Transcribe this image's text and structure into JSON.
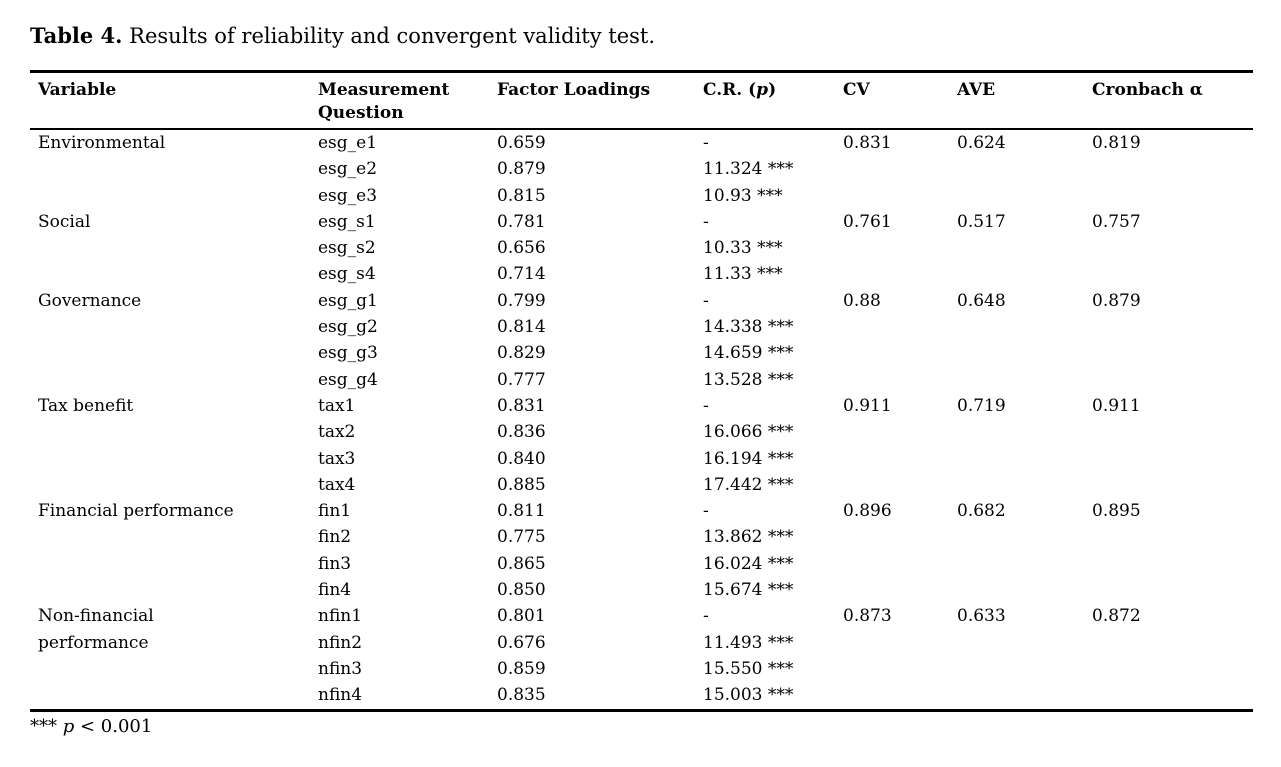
{
  "title": {
    "label": "Table 4.",
    "text": " Results of reliability and convergent validity test."
  },
  "table": {
    "columns": [
      {
        "label": "Variable"
      },
      {
        "line1": "Measurement",
        "line2": "Question"
      },
      {
        "label": "Factor Loadings"
      },
      {
        "label": "C.R. (",
        "italic": "p",
        "suffix": ")"
      },
      {
        "label": "CV"
      },
      {
        "label": "AVE"
      },
      {
        "label": "Cronbach α"
      }
    ],
    "groups": [
      {
        "variable": "Environmental",
        "lines": [
          "Environmental"
        ],
        "cv": "0.831",
        "ave": "0.624",
        "cronbach": "0.819",
        "items": [
          {
            "q": "esg_e1",
            "fl": "0.659",
            "cr": "-"
          },
          {
            "q": "esg_e2",
            "fl": "0.879",
            "cr": "11.324 ***"
          },
          {
            "q": "esg_e3",
            "fl": "0.815",
            "cr": "10.93 ***"
          }
        ]
      },
      {
        "variable": "Social",
        "lines": [
          "Social"
        ],
        "cv": "0.761",
        "ave": "0.517",
        "cronbach": "0.757",
        "items": [
          {
            "q": "esg_s1",
            "fl": "0.781",
            "cr": "-"
          },
          {
            "q": "esg_s2",
            "fl": "0.656",
            "cr": "10.33 ***"
          },
          {
            "q": "esg_s4",
            "fl": "0.714",
            "cr": "11.33 ***"
          }
        ]
      },
      {
        "variable": "Governance",
        "lines": [
          "Governance"
        ],
        "cv": "0.88",
        "ave": "0.648",
        "cronbach": "0.879",
        "items": [
          {
            "q": "esg_g1",
            "fl": "0.799",
            "cr": "-"
          },
          {
            "q": "esg_g2",
            "fl": "0.814",
            "cr": "14.338 ***"
          },
          {
            "q": "esg_g3",
            "fl": "0.829",
            "cr": "14.659 ***"
          },
          {
            "q": "esg_g4",
            "fl": "0.777",
            "cr": "13.528 ***"
          }
        ]
      },
      {
        "variable": "Tax benefit",
        "lines": [
          "Tax benefit"
        ],
        "cv": "0.911",
        "ave": "0.719",
        "cronbach": "0.911",
        "items": [
          {
            "q": "tax1",
            "fl": "0.831",
            "cr": "-"
          },
          {
            "q": "tax2",
            "fl": "0.836",
            "cr": "16.066 ***"
          },
          {
            "q": "tax3",
            "fl": "0.840",
            "cr": "16.194 ***"
          },
          {
            "q": "tax4",
            "fl": "0.885",
            "cr": "17.442 ***"
          }
        ]
      },
      {
        "variable": "Financial performance",
        "lines": [
          "Financial performance"
        ],
        "cv": "0.896",
        "ave": "0.682",
        "cronbach": "0.895",
        "items": [
          {
            "q": "fin1",
            "fl": "0.811",
            "cr": "-"
          },
          {
            "q": "fin2",
            "fl": "0.775",
            "cr": "13.862 ***"
          },
          {
            "q": "fin3",
            "fl": "0.865",
            "cr": "16.024 ***"
          },
          {
            "q": "fin4",
            "fl": "0.850",
            "cr": "15.674 ***"
          }
        ]
      },
      {
        "variable": "Non-financial performance",
        "lines": [
          "Non-financial",
          "performance"
        ],
        "cv": "0.873",
        "ave": "0.633",
        "cronbach": "0.872",
        "items": [
          {
            "q": "nfin1",
            "fl": "0.801",
            "cr": "-"
          },
          {
            "q": "nfin2",
            "fl": "0.676",
            "cr": "11.493 ***"
          },
          {
            "q": "nfin3",
            "fl": "0.859",
            "cr": "15.550 ***"
          },
          {
            "q": "nfin4",
            "fl": "0.835",
            "cr": "15.003 ***"
          }
        ]
      }
    ]
  },
  "footnote": {
    "stars": "*** ",
    "symbol": "p",
    "condition": " < 0.001"
  },
  "colors": {
    "text": "#000000",
    "background": "#ffffff",
    "rule": "#000000"
  }
}
